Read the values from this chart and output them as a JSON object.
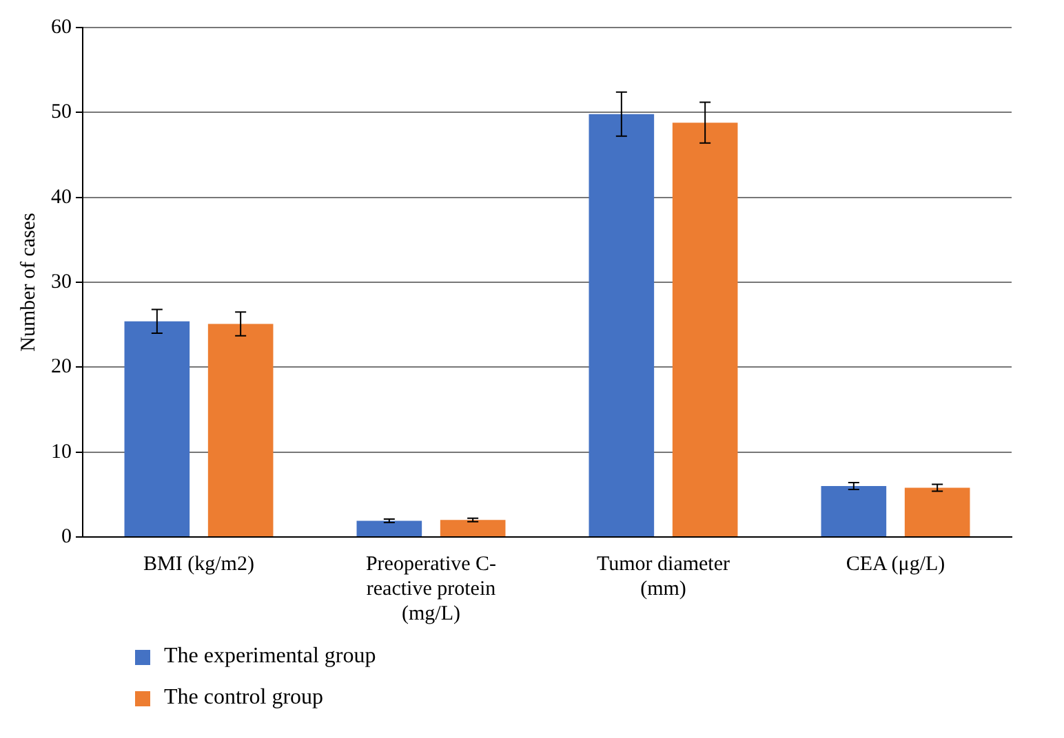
{
  "chart_data": {
    "type": "bar",
    "ylabel": "Number of cases",
    "categories": [
      "BMI (kg/m2)",
      "Preoperative C-reactive protein (mg/L)",
      "Tumor diameter (mm)",
      "CEA (μg/L)"
    ],
    "series": [
      {
        "name": "The experimental group",
        "color": "#4472c4",
        "values": [
          25.4,
          1.9,
          49.8,
          6.0
        ],
        "errors": [
          1.4,
          0.2,
          2.6,
          0.4
        ]
      },
      {
        "name": "The control group",
        "color": "#ed7d31",
        "values": [
          25.1,
          2.0,
          48.8,
          5.8
        ],
        "errors": [
          1.4,
          0.2,
          2.4,
          0.4
        ]
      }
    ],
    "ylim": [
      0,
      60
    ],
    "yticks": [
      0,
      10,
      20,
      30,
      40,
      50,
      60
    ],
    "grid": "y",
    "legend": "bottom left"
  }
}
